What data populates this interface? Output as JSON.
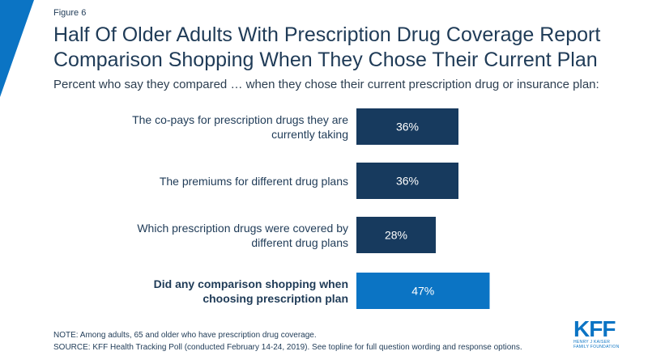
{
  "figure_label": "Figure 6",
  "title": "Half Of Older Adults With Prescription Drug Coverage Report Comparison Shopping When They Chose Their Current Plan",
  "subtitle": "Percent who say they compared … when they chose their current prescription drug or insurance plan:",
  "chart_data": {
    "type": "bar",
    "orientation": "horizontal",
    "categories": [
      "The co-pays for prescription drugs they are currently taking",
      "The premiums for different drug plans",
      "Which prescription drugs were covered by different drug plans",
      "Did any comparison shopping when choosing prescription plan"
    ],
    "values": [
      36,
      36,
      28,
      47
    ],
    "value_labels": [
      "36%",
      "36%",
      "28%",
      "47%"
    ],
    "bar_colors": [
      "#173a5e",
      "#173a5e",
      "#173a5e",
      "#0b74c4"
    ],
    "bold_categories": [
      false,
      false,
      false,
      true
    ],
    "xlim": [
      0,
      100
    ],
    "title": "Half Of Older Adults With Prescription Drug Coverage Report Comparison Shopping When They Chose Their Current Plan",
    "xlabel": "",
    "ylabel": ""
  },
  "notes": {
    "note": "NOTE: Among adults, 65 and older who have prescription drug coverage.",
    "source": "SOURCE: KFF Health Tracking Poll (conducted February 14-24, 2019). See topline for full question wording and response options."
  },
  "logo": {
    "mark": "KFF",
    "line1": "HENRY J KAISER",
    "line2": "FAMILY FOUNDATION"
  },
  "colors": {
    "accent": "#0b74c4",
    "dark_bar": "#173a5e",
    "text": "#1f3b57"
  }
}
